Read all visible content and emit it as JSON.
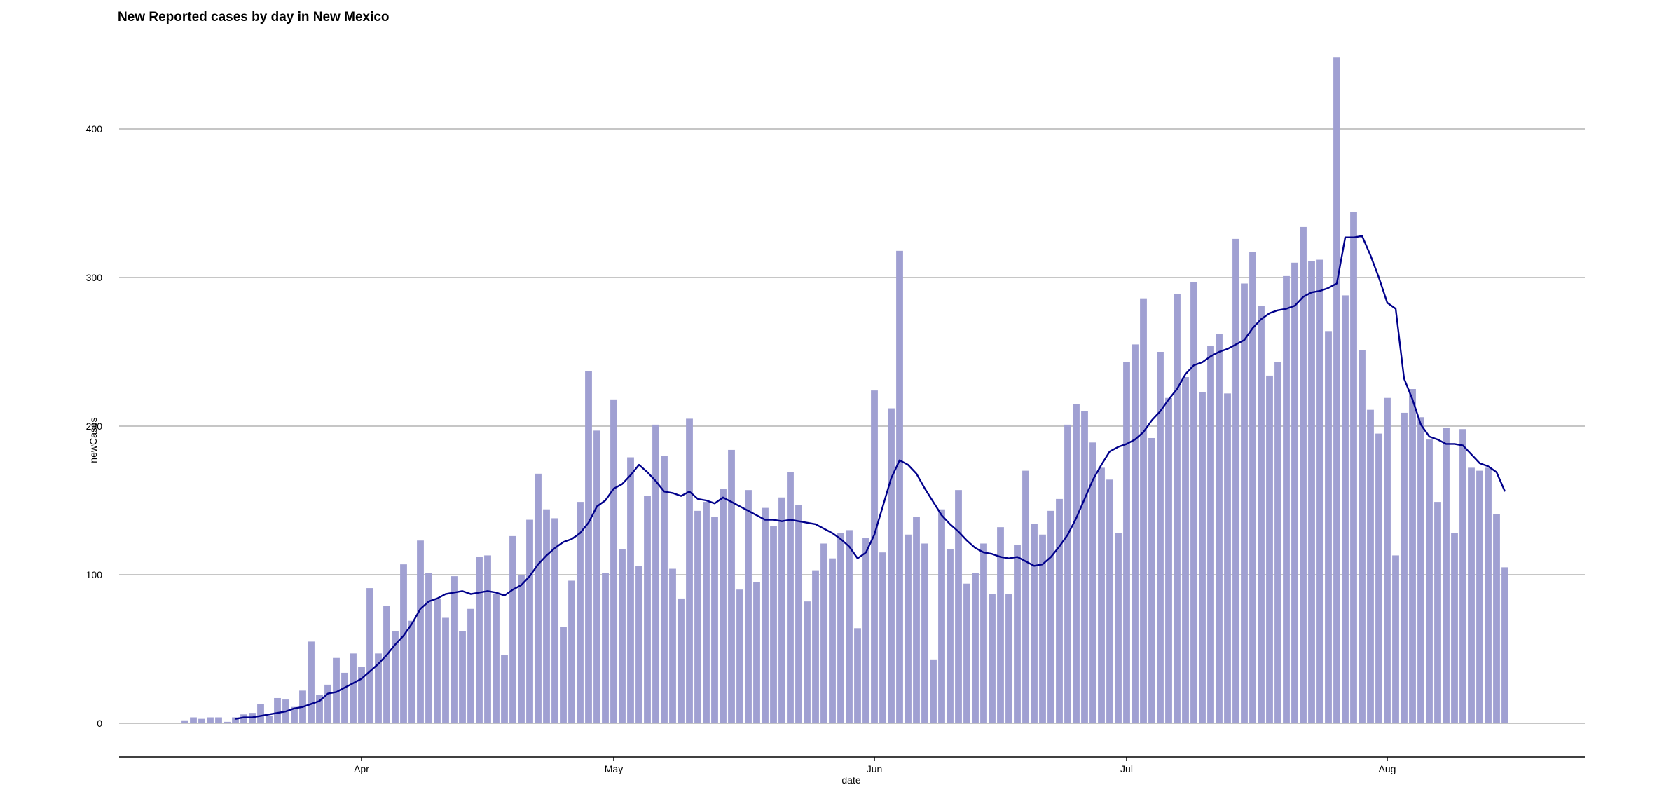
{
  "chart_data": {
    "type": "bar",
    "title": "New Reported cases by day in New Mexico",
    "xlabel": "date",
    "ylabel": "newCases",
    "x_start": "2020-03-11",
    "ylim": [
      -40,
      450
    ],
    "xlim": [
      "2020-03-03",
      "2020-08-25"
    ],
    "y_ticks": [
      0,
      100,
      200,
      300,
      400
    ],
    "x_ticks": [
      {
        "label": "Apr",
        "date": "2020-04-01"
      },
      {
        "label": "May",
        "date": "2020-05-01"
      },
      {
        "label": "Jun",
        "date": "2020-06-01"
      },
      {
        "label": "Jul",
        "date": "2020-07-01"
      },
      {
        "label": "Aug",
        "date": "2020-08-01"
      }
    ],
    "grid": "horizontal",
    "series": [
      {
        "type": "bar",
        "color": "#a0a0d2",
        "values": [
          2,
          4,
          3,
          4,
          4,
          1,
          4,
          6,
          7,
          13,
          5,
          17,
          16,
          11,
          22,
          55,
          19,
          26,
          44,
          34,
          47,
          38,
          91,
          47,
          79,
          62,
          107,
          69,
          123,
          101,
          84,
          71,
          99,
          62,
          77,
          112,
          113,
          87,
          46,
          126,
          100,
          137,
          168,
          144,
          138,
          65,
          96,
          149,
          237,
          197,
          101,
          218,
          117,
          179,
          106,
          153,
          201,
          180,
          104,
          84,
          205,
          143,
          149,
          139,
          158,
          184,
          90,
          157,
          95,
          145,
          133,
          152,
          169,
          147,
          82,
          103,
          121,
          111,
          128,
          130,
          64,
          125,
          224,
          115,
          212,
          318,
          127,
          139,
          121,
          43,
          144,
          117,
          157,
          94,
          101,
          121,
          87,
          132,
          87,
          120,
          170,
          134,
          127,
          143,
          151,
          201,
          215,
          210,
          189,
          172,
          164,
          128,
          243,
          255,
          286,
          192,
          250,
          219,
          289,
          233,
          297,
          223,
          254,
          262,
          222,
          326,
          296,
          317,
          281,
          234,
          243,
          301,
          310,
          334,
          311,
          312,
          264,
          448,
          288,
          344,
          251,
          211,
          195,
          219,
          113,
          209,
          225,
          206,
          191,
          149,
          199,
          128,
          198,
          172,
          170,
          172,
          141,
          105
        ]
      },
      {
        "type": "line",
        "color": "#00008b",
        "values": [
          null,
          null,
          null,
          null,
          null,
          null,
          3,
          4,
          4,
          5,
          6,
          7,
          8,
          10,
          11,
          13,
          15,
          20,
          21,
          24,
          27,
          30,
          35,
          40,
          46,
          53,
          59,
          67,
          77,
          82,
          84,
          87,
          88,
          89,
          87,
          88,
          89,
          88,
          86,
          90,
          93,
          99,
          107,
          113,
          118,
          122,
          124,
          128,
          135,
          146,
          150,
          158,
          161,
          167,
          174,
          169,
          163,
          156,
          155,
          153,
          156,
          151,
          150,
          148,
          152,
          149,
          146,
          143,
          140,
          137,
          137,
          136,
          137,
          136,
          135,
          134,
          131,
          128,
          124,
          119,
          111,
          115,
          127,
          146,
          165,
          177,
          174,
          168,
          158,
          149,
          140,
          134,
          129,
          123,
          118,
          115,
          114,
          112,
          111,
          112,
          109,
          106,
          107,
          112,
          119,
          127,
          138,
          151,
          164,
          174,
          183,
          186,
          188,
          191,
          196,
          204,
          210,
          218,
          225,
          235,
          241,
          243,
          247,
          250,
          252,
          255,
          258,
          266,
          272,
          276,
          278,
          279,
          281,
          287,
          290,
          291,
          293,
          296,
          327,
          327,
          328,
          315,
          300,
          283,
          279,
          232,
          218,
          201,
          193,
          191,
          188,
          188,
          187,
          181,
          175,
          173,
          169,
          156
        ]
      }
    ]
  }
}
